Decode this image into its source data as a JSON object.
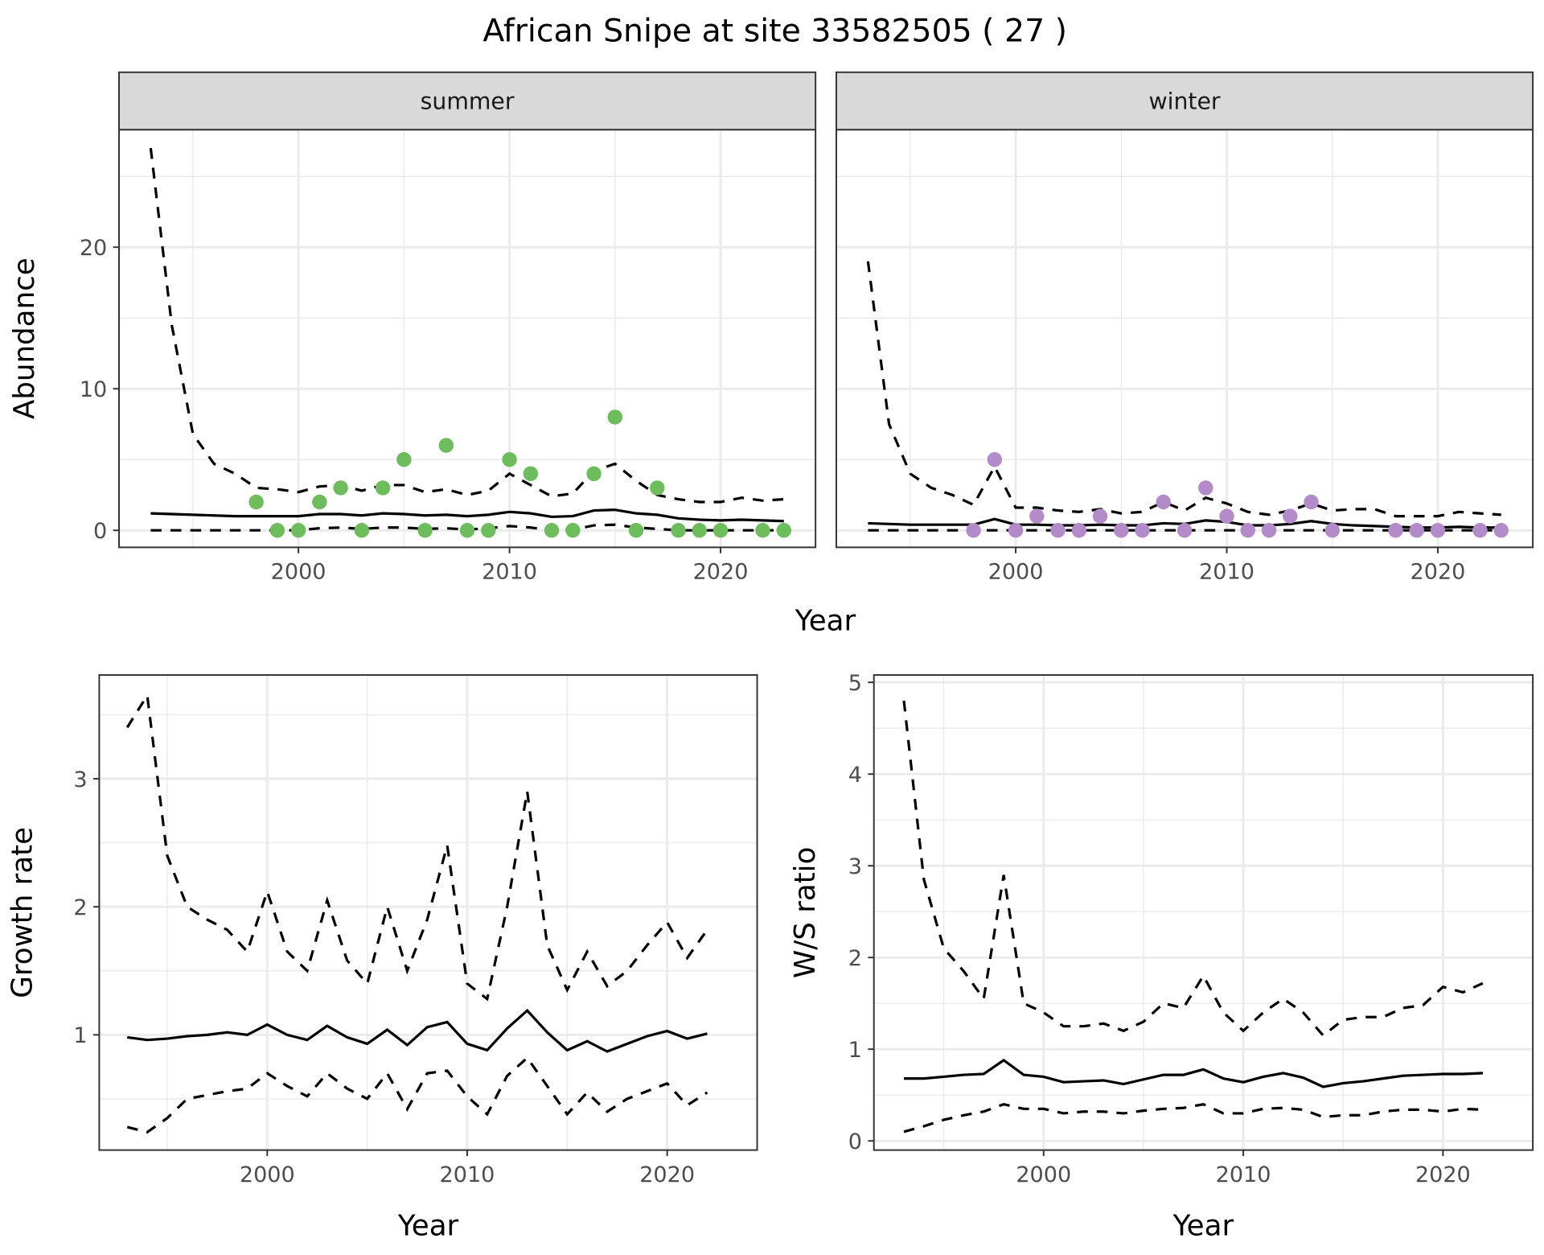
{
  "title": "African Snipe at site 33582505 ( 27 )",
  "colors": {
    "summer": "#6DBD5D",
    "winter": "#B48BC9",
    "line": "#000000",
    "strip": "#D9D9D9",
    "grid": "#EBEBEB"
  },
  "chart_data": [
    {
      "type": "line+scatter",
      "facet": "summer",
      "xlabel": "Year",
      "ylabel": "Abundance",
      "xlim": [
        1991.5,
        2024.5
      ],
      "ylim": [
        -1.2,
        28.3
      ],
      "xticks": [
        2000,
        2010,
        2020
      ],
      "yticks": [
        0,
        10,
        20
      ],
      "grid": true,
      "years": [
        1993,
        1994,
        1995,
        1996,
        1997,
        1998,
        1999,
        2000,
        2001,
        2002,
        2003,
        2004,
        2005,
        2006,
        2007,
        2008,
        2009,
        2010,
        2011,
        2012,
        2013,
        2014,
        2015,
        2016,
        2017,
        2018,
        2019,
        2020,
        2021,
        2022,
        2023
      ],
      "mean": [
        1.2,
        1.15,
        1.1,
        1.05,
        1.0,
        1.0,
        1.0,
        1.0,
        1.15,
        1.15,
        1.05,
        1.2,
        1.15,
        1.05,
        1.1,
        1.0,
        1.1,
        1.3,
        1.2,
        0.95,
        1.0,
        1.4,
        1.45,
        1.2,
        1.1,
        0.85,
        0.75,
        0.7,
        0.75,
        0.7,
        0.65
      ],
      "upper": [
        27,
        14.5,
        6.8,
        4.7,
        4.0,
        3.0,
        2.9,
        2.7,
        3.1,
        3.2,
        2.8,
        3.2,
        3.2,
        2.7,
        2.9,
        2.5,
        2.8,
        4.0,
        3.2,
        2.4,
        2.6,
        4.2,
        4.7,
        3.5,
        2.5,
        2.2,
        2.0,
        2.0,
        2.3,
        2.1,
        2.2
      ],
      "lower": [
        0,
        0,
        0,
        0,
        0,
        0,
        0,
        0,
        0.15,
        0.2,
        0.1,
        0.2,
        0.2,
        0.1,
        0.15,
        0.05,
        0.15,
        0.3,
        0.2,
        0,
        0.05,
        0.35,
        0.4,
        0.2,
        0.1,
        0,
        0,
        0,
        0,
        0,
        0
      ],
      "points": {
        "x": [
          1998,
          1999,
          2000,
          2001,
          2002,
          2003,
          2004,
          2005,
          2006,
          2007,
          2008,
          2009,
          2010,
          2011,
          2012,
          2013,
          2014,
          2015,
          2016,
          2017,
          2018,
          2019,
          2020,
          2022,
          2023
        ],
        "y": [
          2,
          0,
          0,
          2,
          3,
          0,
          3,
          5,
          0,
          6,
          0,
          0,
          5,
          4,
          0,
          0,
          4,
          8,
          0,
          3,
          0,
          0,
          0,
          0,
          0
        ]
      }
    },
    {
      "type": "line+scatter",
      "facet": "winter",
      "xlabel": "Year",
      "ylabel": "Abundance",
      "xlim": [
        1991.5,
        2024.5
      ],
      "ylim": [
        -1.2,
        28.3
      ],
      "xticks": [
        2000,
        2010,
        2020
      ],
      "yticks": [
        0,
        10,
        20
      ],
      "grid": true,
      "years": [
        1993,
        1994,
        1995,
        1996,
        1997,
        1998,
        1999,
        2000,
        2001,
        2002,
        2003,
        2004,
        2005,
        2006,
        2007,
        2008,
        2009,
        2010,
        2011,
        2012,
        2013,
        2014,
        2015,
        2016,
        2017,
        2018,
        2019,
        2020,
        2021,
        2022,
        2023
      ],
      "mean": [
        0.5,
        0.45,
        0.4,
        0.4,
        0.4,
        0.4,
        0.8,
        0.4,
        0.4,
        0.35,
        0.35,
        0.4,
        0.35,
        0.35,
        0.5,
        0.45,
        0.7,
        0.6,
        0.35,
        0.35,
        0.45,
        0.65,
        0.45,
        0.35,
        0.3,
        0.25,
        0.2,
        0.2,
        0.25,
        0.2,
        0.2
      ],
      "upper": [
        19,
        7.5,
        4.0,
        3.0,
        2.5,
        1.8,
        4.5,
        1.6,
        1.6,
        1.4,
        1.3,
        1.5,
        1.2,
        1.3,
        2.0,
        1.4,
        2.3,
        1.9,
        1.3,
        1.1,
        1.4,
        1.9,
        1.4,
        1.5,
        1.5,
        1.0,
        1.0,
        1.0,
        1.3,
        1.2,
        1.1
      ],
      "lower": [
        0,
        0,
        0,
        0,
        0,
        0,
        0,
        0,
        0,
        0,
        0,
        0,
        0,
        0,
        0,
        0,
        0,
        0,
        0,
        0,
        0,
        0,
        0,
        0,
        0,
        0,
        0,
        0,
        0,
        0,
        0
      ],
      "points": {
        "x": [
          1998,
          1999,
          2000,
          2001,
          2002,
          2003,
          2004,
          2005,
          2006,
          2007,
          2008,
          2009,
          2010,
          2011,
          2012,
          2013,
          2014,
          2015,
          2018,
          2019,
          2020,
          2022,
          2023
        ],
        "y": [
          0,
          5,
          0,
          1,
          0,
          0,
          1,
          0,
          0,
          2,
          0,
          3,
          1,
          0,
          0,
          1,
          2,
          0,
          0,
          0,
          0,
          0,
          0
        ]
      }
    },
    {
      "type": "line",
      "xlabel": "Year",
      "ylabel": "Growth rate",
      "xlim": [
        1991.6,
        2024.5
      ],
      "ylim": [
        0.1,
        3.81
      ],
      "xticks": [
        2000,
        2010,
        2020
      ],
      "yticks": [
        1,
        2,
        3
      ],
      "grid": true,
      "years": [
        1993,
        1994,
        1995,
        1996,
        1997,
        1998,
        1999,
        2000,
        2001,
        2002,
        2003,
        2004,
        2005,
        2006,
        2007,
        2008,
        2009,
        2010,
        2011,
        2012,
        2013,
        2014,
        2015,
        2016,
        2017,
        2018,
        2019,
        2020,
        2021,
        2022
      ],
      "mean": [
        0.98,
        0.96,
        0.97,
        0.99,
        1.0,
        1.02,
        1.0,
        1.08,
        1.0,
        0.96,
        1.07,
        0.98,
        0.93,
        1.04,
        0.92,
        1.06,
        1.1,
        0.93,
        0.88,
        1.05,
        1.19,
        1.02,
        0.88,
        0.95,
        0.87,
        0.93,
        0.99,
        1.03,
        0.97,
        1.01
      ],
      "upper": [
        3.4,
        3.65,
        2.4,
        2.0,
        1.9,
        1.82,
        1.65,
        2.12,
        1.65,
        1.5,
        2.05,
        1.58,
        1.4,
        2.0,
        1.5,
        1.9,
        2.48,
        1.4,
        1.28,
        2.0,
        2.9,
        1.7,
        1.35,
        1.65,
        1.38,
        1.5,
        1.7,
        1.88,
        1.6,
        1.82
      ],
      "lower": [
        0.28,
        0.24,
        0.35,
        0.5,
        0.53,
        0.56,
        0.58,
        0.7,
        0.6,
        0.52,
        0.7,
        0.58,
        0.5,
        0.7,
        0.42,
        0.7,
        0.72,
        0.52,
        0.38,
        0.68,
        0.82,
        0.6,
        0.38,
        0.55,
        0.4,
        0.5,
        0.56,
        0.62,
        0.45,
        0.55
      ]
    },
    {
      "type": "line",
      "xlabel": "Year",
      "ylabel": "W/S ratio",
      "xlim": [
        1991.5,
        2024.5
      ],
      "ylim": [
        -0.1,
        5.08
      ],
      "xticks": [
        2000,
        2010,
        2020
      ],
      "yticks": [
        0,
        1,
        2,
        3,
        4,
        5
      ],
      "grid": true,
      "years": [
        1993,
        1994,
        1995,
        1996,
        1997,
        1998,
        1999,
        2000,
        2001,
        2002,
        2003,
        2004,
        2005,
        2006,
        2007,
        2008,
        2009,
        2010,
        2011,
        2012,
        2013,
        2014,
        2015,
        2016,
        2017,
        2018,
        2019,
        2020,
        2021,
        2022
      ],
      "mean": [
        0.68,
        0.68,
        0.7,
        0.72,
        0.73,
        0.88,
        0.72,
        0.7,
        0.64,
        0.65,
        0.66,
        0.62,
        0.67,
        0.72,
        0.72,
        0.78,
        0.68,
        0.64,
        0.7,
        0.74,
        0.69,
        0.59,
        0.63,
        0.65,
        0.68,
        0.71,
        0.72,
        0.73,
        0.73,
        0.74
      ],
      "upper": [
        4.8,
        2.85,
        2.1,
        1.85,
        1.55,
        2.9,
        1.5,
        1.4,
        1.25,
        1.25,
        1.28,
        1.2,
        1.3,
        1.5,
        1.45,
        1.8,
        1.4,
        1.2,
        1.4,
        1.55,
        1.4,
        1.15,
        1.32,
        1.35,
        1.35,
        1.45,
        1.48,
        1.68,
        1.62,
        1.72
      ],
      "lower": [
        0.1,
        0.16,
        0.23,
        0.28,
        0.32,
        0.4,
        0.35,
        0.35,
        0.3,
        0.32,
        0.32,
        0.3,
        0.33,
        0.35,
        0.36,
        0.4,
        0.3,
        0.3,
        0.35,
        0.36,
        0.34,
        0.26,
        0.28,
        0.28,
        0.32,
        0.34,
        0.34,
        0.32,
        0.35,
        0.34
      ]
    }
  ]
}
